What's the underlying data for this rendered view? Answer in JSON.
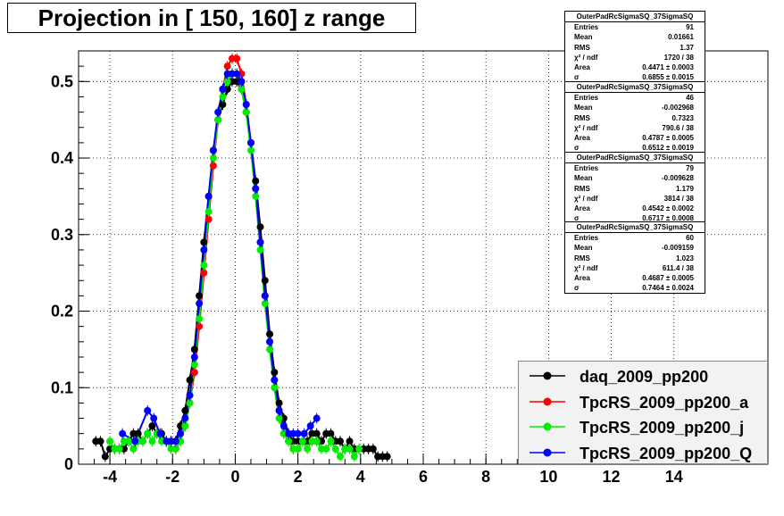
{
  "chart_data": {
    "type": "scatter",
    "title": "Projection in [ 150, 160] z range",
    "xlim": [
      -5.0,
      17.0
    ],
    "ylim": [
      0,
      0.54
    ],
    "x_ticks": [
      -4,
      -2,
      0,
      2,
      4,
      6,
      8,
      10,
      12,
      14
    ],
    "x_tick_labels": [
      "-4",
      "-2",
      "0",
      "2",
      "4",
      "6",
      "8",
      "10",
      "12",
      "14"
    ],
    "y_ticks": [
      0,
      0.1,
      0.2,
      0.3,
      0.4,
      0.5
    ],
    "y_tick_labels": [
      "0",
      "0.1",
      "0.2",
      "0.3",
      "0.4",
      "0.5"
    ],
    "grid": true,
    "legend_position": "bottom-right",
    "stats": [
      {
        "title": "OuterPadRcSigmaSQ_37SigmaSQ",
        "rows": [
          {
            "label": "Entries",
            "value": "91"
          },
          {
            "label": "Mean",
            "value": "0.01661"
          },
          {
            "label": "RMS",
            "value": "1.37"
          },
          {
            "label": "χ² / ndf",
            "value": "1720 / 38"
          },
          {
            "label": "Area",
            "value": "0.4471 ± 0.0003"
          },
          {
            "label": "σ",
            "value": "0.6855 ± 0.0015"
          }
        ]
      },
      {
        "title": "OuterPadRcSigmaSQ_37SigmaSQ",
        "rows": [
          {
            "label": "Entries",
            "value": "46"
          },
          {
            "label": "Mean",
            "value": "-0.002968"
          },
          {
            "label": "RMS",
            "value": "0.7323"
          },
          {
            "label": "χ² / ndf",
            "value": "790.6 / 38"
          },
          {
            "label": "Area",
            "value": "0.4787 ± 0.0005"
          },
          {
            "label": "σ",
            "value": "0.6512 ± 0.0019"
          }
        ]
      },
      {
        "title": "OuterPadRcSigmaSQ_37SigmaSQ",
        "rows": [
          {
            "label": "Entries",
            "value": "79"
          },
          {
            "label": "Mean",
            "value": "-0.009628"
          },
          {
            "label": "RMS",
            "value": "1.179"
          },
          {
            "label": "χ² / ndf",
            "value": "3814 / 38"
          },
          {
            "label": "Area",
            "value": "0.4542 ± 0.0002"
          },
          {
            "label": "σ",
            "value": "0.6717 ± 0.0008"
          }
        ]
      },
      {
        "title": "OuterPadRcSigmaSQ_37SigmaSQ",
        "rows": [
          {
            "label": "Entries",
            "value": "60"
          },
          {
            "label": "Mean",
            "value": "-0.009159"
          },
          {
            "label": "RMS",
            "value": "1.023"
          },
          {
            "label": "χ² / ndf",
            "value": "611.4 / 38"
          },
          {
            "label": "Area",
            "value": "0.4687 ± 0.0005"
          },
          {
            "label": "σ",
            "value": "0.7464 ± 0.0024"
          }
        ]
      }
    ],
    "series": [
      {
        "name": "daq_2009_pp200",
        "color": "#000000",
        "x": [
          -4.45,
          -4.3,
          -4.15,
          -4.0,
          -3.85,
          -3.7,
          -3.55,
          -3.4,
          -3.25,
          -3.1,
          -2.95,
          -2.8,
          -2.65,
          -2.5,
          -2.35,
          -2.2,
          -2.05,
          -1.9,
          -1.75,
          -1.6,
          -1.45,
          -1.3,
          -1.15,
          -1.0,
          -0.85,
          -0.7,
          -0.55,
          -0.4,
          -0.25,
          -0.1,
          0.05,
          0.2,
          0.35,
          0.5,
          0.65,
          0.8,
          0.95,
          1.1,
          1.25,
          1.4,
          1.55,
          1.7,
          1.85,
          2.0,
          2.15,
          2.3,
          2.45,
          2.6,
          2.75,
          2.9,
          3.05,
          3.2,
          3.35,
          3.5,
          3.65,
          3.8,
          3.95,
          4.1,
          4.25,
          4.4,
          4.55,
          4.7,
          4.85
        ],
        "y": [
          0.03,
          0.03,
          0.01,
          0.02,
          0.02,
          0.02,
          0.02,
          0.03,
          0.04,
          0.04,
          0.03,
          0.04,
          0.05,
          0.04,
          0.04,
          0.03,
          0.03,
          0.03,
          0.05,
          0.07,
          0.11,
          0.15,
          0.22,
          0.29,
          0.35,
          0.41,
          0.45,
          0.47,
          0.49,
          0.5,
          0.5,
          0.49,
          0.46,
          0.42,
          0.37,
          0.31,
          0.24,
          0.17,
          0.12,
          0.08,
          0.06,
          0.04,
          0.03,
          0.03,
          0.03,
          0.03,
          0.04,
          0.04,
          0.03,
          0.04,
          0.04,
          0.03,
          0.03,
          0.02,
          0.03,
          0.02,
          0.02,
          0.02,
          0.02,
          0.02,
          0.01,
          0.01,
          0.01
        ]
      },
      {
        "name": "TpcRS_2009_pp200_a",
        "color": "#ff0000",
        "x": [
          -1.9,
          -1.75,
          -1.6,
          -1.45,
          -1.3,
          -1.15,
          -1.0,
          -0.85,
          -0.7,
          -0.55,
          -0.4,
          -0.25,
          -0.1,
          0.05,
          0.2,
          0.35,
          0.5,
          0.65,
          0.8,
          0.95,
          1.1,
          1.25,
          1.4,
          1.55,
          1.7,
          1.85,
          2.0
        ],
        "y": [
          0.02,
          0.03,
          0.05,
          0.08,
          0.12,
          0.18,
          0.25,
          0.32,
          0.39,
          0.45,
          0.49,
          0.52,
          0.53,
          0.53,
          0.51,
          0.47,
          0.42,
          0.36,
          0.29,
          0.22,
          0.16,
          0.11,
          0.07,
          0.04,
          0.03,
          0.02,
          0.02
        ]
      },
      {
        "name": "TpcRS_2009_pp200_j",
        "color": "#00ee00",
        "x": [
          -4.0,
          -3.85,
          -3.7,
          -3.55,
          -3.4,
          -3.25,
          -3.1,
          -2.95,
          -2.8,
          -2.65,
          -2.5,
          -2.35,
          -2.2,
          -2.05,
          -1.9,
          -1.75,
          -1.6,
          -1.45,
          -1.3,
          -1.15,
          -1.0,
          -0.85,
          -0.7,
          -0.55,
          -0.4,
          -0.25,
          -0.1,
          0.05,
          0.2,
          0.35,
          0.5,
          0.65,
          0.8,
          0.95,
          1.1,
          1.25,
          1.4,
          1.55,
          1.7,
          1.85,
          2.0,
          2.15,
          2.3,
          2.45,
          2.6,
          2.75,
          2.9,
          3.05,
          3.2,
          3.35,
          3.5,
          3.65,
          3.8,
          3.95
        ],
        "y": [
          0.03,
          0.02,
          0.02,
          0.03,
          0.03,
          0.02,
          0.03,
          0.03,
          0.04,
          0.03,
          0.04,
          0.03,
          0.03,
          0.02,
          0.02,
          0.03,
          0.05,
          0.08,
          0.13,
          0.19,
          0.26,
          0.33,
          0.4,
          0.45,
          0.48,
          0.5,
          0.51,
          0.51,
          0.49,
          0.46,
          0.41,
          0.35,
          0.28,
          0.21,
          0.15,
          0.1,
          0.06,
          0.04,
          0.03,
          0.02,
          0.02,
          0.03,
          0.02,
          0.03,
          0.03,
          0.02,
          0.02,
          0.03,
          0.02,
          0.01,
          0.02,
          0.02,
          0.01,
          0.02
        ]
      },
      {
        "name": "TpcRS_2009_pp200_Q",
        "color": "#0000ff",
        "x": [
          -3.6,
          -3.2,
          -2.8,
          -2.6,
          -2.4,
          -2.2,
          -2.05,
          -1.9,
          -1.75,
          -1.6,
          -1.45,
          -1.3,
          -1.15,
          -1.0,
          -0.85,
          -0.7,
          -0.55,
          -0.4,
          -0.25,
          -0.1,
          0.05,
          0.2,
          0.35,
          0.5,
          0.65,
          0.8,
          0.95,
          1.1,
          1.25,
          1.4,
          1.55,
          1.7,
          1.85,
          2.0,
          2.2,
          2.4,
          2.6
        ],
        "y": [
          0.04,
          0.03,
          0.07,
          0.06,
          0.04,
          0.03,
          0.03,
          0.03,
          0.04,
          0.06,
          0.09,
          0.14,
          0.21,
          0.28,
          0.35,
          0.41,
          0.46,
          0.49,
          0.51,
          0.51,
          0.51,
          0.5,
          0.47,
          0.42,
          0.36,
          0.29,
          0.22,
          0.16,
          0.11,
          0.07,
          0.05,
          0.04,
          0.04,
          0.04,
          0.04,
          0.05,
          0.06
        ]
      }
    ]
  }
}
